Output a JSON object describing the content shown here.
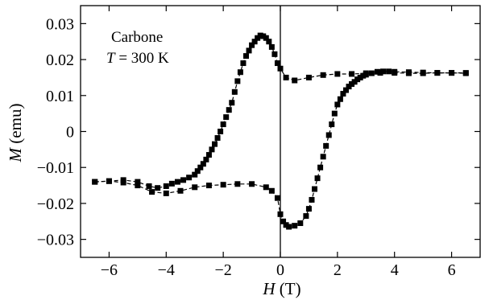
{
  "chart_data": {
    "type": "line",
    "title": "",
    "xlabel": {
      "symbol": "H",
      "unit": "(T)"
    },
    "ylabel": {
      "symbol": "M",
      "unit": "(emu)"
    },
    "xlim": [
      -7.0,
      7.0
    ],
    "ylim": [
      -0.035,
      0.035
    ],
    "x_ticks": [
      -6,
      -4,
      -2,
      0,
      2,
      4,
      6
    ],
    "x_tick_labels": [
      "−6",
      "−4",
      "−2",
      "0",
      "2",
      "4",
      "6"
    ],
    "y_ticks": [
      0.03,
      0.02,
      0.01,
      0,
      -0.01,
      -0.02,
      -0.03
    ],
    "y_tick_labels": [
      "0.03",
      "0.02",
      "0.01",
      "0",
      "−0.01",
      "−0.02",
      "−0.03"
    ],
    "grid": false,
    "zero_line": "vertical line at H = 0",
    "annotation": {
      "line1": "Carbone",
      "line2_symbol": "T",
      "line2_rest": " = 300 K"
    },
    "marker": "square",
    "line_style": "dashed",
    "color": "#000000",
    "series": [
      {
        "x": [
          -6.5,
          -6.0,
          -5.5,
          -5.0,
          -4.6,
          -4.3,
          -4.0,
          -3.8,
          -3.6,
          -3.4,
          -3.2,
          -3.0,
          -2.9,
          -2.8,
          -2.7,
          -2.6,
          -2.5,
          -2.4,
          -2.3,
          -2.2,
          -2.1,
          -2.0,
          -1.9,
          -1.8,
          -1.7,
          -1.6,
          -1.5,
          -1.4,
          -1.3,
          -1.2,
          -1.1,
          -1.0,
          -0.9,
          -0.8,
          -0.7,
          -0.6,
          -0.5,
          -0.4,
          -0.3,
          -0.2,
          -0.1,
          0.0,
          0.2,
          0.5,
          1.0,
          1.5,
          2.0,
          2.5,
          3.0,
          3.5,
          4.0,
          4.5,
          5.0,
          5.5,
          6.0,
          6.5
        ],
        "y": [
          -0.014,
          -0.0138,
          -0.0135,
          -0.014,
          -0.0152,
          -0.0157,
          -0.0152,
          -0.0145,
          -0.014,
          -0.0135,
          -0.0128,
          -0.012,
          -0.011,
          -0.01,
          -0.009,
          -0.0078,
          -0.0065,
          -0.005,
          -0.0035,
          -0.0018,
          0.0,
          0.002,
          0.004,
          0.006,
          0.008,
          0.011,
          0.014,
          0.0165,
          0.019,
          0.021,
          0.0225,
          0.024,
          0.025,
          0.026,
          0.0267,
          0.0265,
          0.026,
          0.025,
          0.0235,
          0.0215,
          0.019,
          0.0175,
          0.015,
          0.0142,
          0.015,
          0.0157,
          0.016,
          0.016,
          0.0162,
          0.0163,
          0.0163,
          0.0162,
          0.0162,
          0.0163,
          0.0163,
          0.0163
        ]
      },
      {
        "x": [
          -6.5,
          -6.0,
          -5.5,
          -5.0,
          -4.5,
          -4.0,
          -3.5,
          -3.0,
          -2.5,
          -2.0,
          -1.5,
          -1.0,
          -0.5,
          -0.3,
          -0.1,
          0.0,
          0.1,
          0.2,
          0.3,
          0.5,
          0.7,
          0.9,
          1.0,
          1.1,
          1.2,
          1.3,
          1.4,
          1.5,
          1.6,
          1.7,
          1.8,
          1.9,
          2.0,
          2.1,
          2.2,
          2.3,
          2.4,
          2.5,
          2.6,
          2.7,
          2.8,
          2.9,
          3.0,
          3.2,
          3.4,
          3.6,
          3.8,
          4.0,
          4.5,
          5.0,
          5.5,
          6.0,
          6.5
        ],
        "y": [
          -0.014,
          -0.0138,
          -0.0142,
          -0.015,
          -0.0168,
          -0.0172,
          -0.0165,
          -0.0155,
          -0.015,
          -0.0148,
          -0.0146,
          -0.0146,
          -0.0155,
          -0.0165,
          -0.0185,
          -0.023,
          -0.025,
          -0.026,
          -0.0265,
          -0.0262,
          -0.0255,
          -0.0235,
          -0.0215,
          -0.019,
          -0.016,
          -0.013,
          -0.01,
          -0.007,
          -0.004,
          -0.001,
          0.002,
          0.005,
          0.0075,
          0.009,
          0.0105,
          0.0115,
          0.0125,
          0.0132,
          0.0138,
          0.0145,
          0.015,
          0.0155,
          0.0158,
          0.0162,
          0.0166,
          0.0167,
          0.0167,
          0.0166,
          0.0165,
          0.0164,
          0.0163,
          0.0163,
          0.0162
        ]
      }
    ]
  }
}
